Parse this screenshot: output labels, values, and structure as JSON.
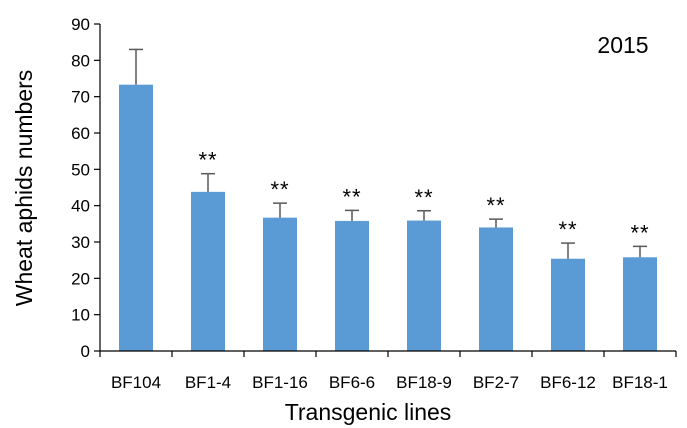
{
  "chart_data": {
    "type": "bar",
    "title": "",
    "annotation": "2015",
    "xlabel": "Transgenic lines",
    "ylabel": "Wheat aphids numbers",
    "ylim": [
      0,
      90
    ],
    "yticks": [
      0,
      10,
      20,
      30,
      40,
      50,
      60,
      70,
      80,
      90
    ],
    "categories": [
      "BF104",
      "BF1-4",
      "BF1-16",
      "BF6-6",
      "BF18-9",
      "BF2-7",
      "BF6-12",
      "BF18-1"
    ],
    "values": [
      73.3,
      43.8,
      36.7,
      35.8,
      35.9,
      34.0,
      25.4,
      25.8
    ],
    "error_plus": [
      9.7,
      5.0,
      4.0,
      2.9,
      2.7,
      2.3,
      4.3,
      3.0
    ],
    "significance": [
      "",
      "**",
      "**",
      "**",
      "**",
      "**",
      "**",
      "**"
    ],
    "bar_color": "#5b9bd5",
    "error_color": "#595959",
    "grid": false,
    "legend": "none"
  }
}
